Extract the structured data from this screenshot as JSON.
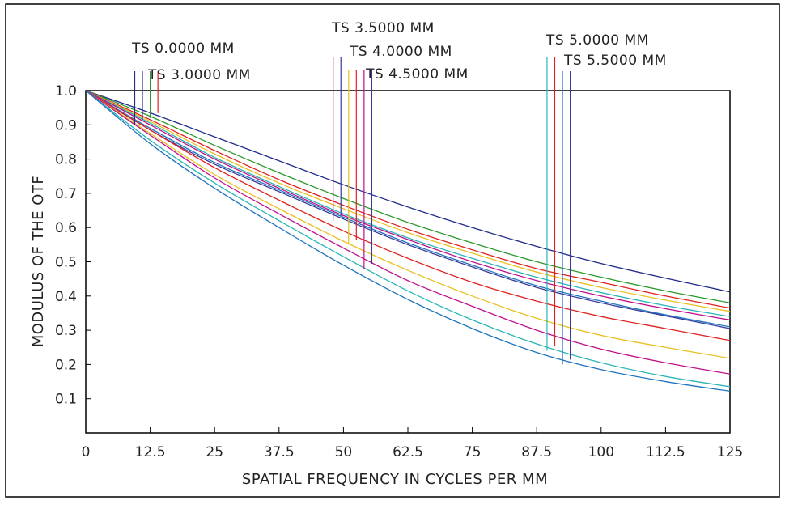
{
  "chart_data": {
    "type": "line",
    "title": "",
    "xlabel": "SPATIAL FREQUENCY IN CYCLES PER MM",
    "ylabel": "MODULUS OF THE OTF",
    "xlim": [
      0,
      125
    ],
    "ylim": [
      0,
      1.0
    ],
    "grid": false,
    "x_ticks": [
      "0",
      "12.5",
      "25",
      "37.5",
      "50",
      "62.5",
      "75",
      "87.5",
      "100",
      "112.5",
      "125"
    ],
    "y_ticks": [
      "0.1",
      "0.2",
      "0.3",
      "0.4",
      "0.5",
      "0.6",
      "0.7",
      "0.8",
      "0.9",
      "1.0"
    ],
    "field_labels": [
      {
        "text": "TS 0.0000 MM",
        "marker_x": [
          9.5,
          11.0
        ],
        "marker_y": 0.9
      },
      {
        "text": "TS 3.0000 MM",
        "marker_x": [
          12.5,
          14.0
        ],
        "marker_y": 0.92
      },
      {
        "text": "TS 3.5000 MM",
        "marker_x": [
          48.0,
          49.5
        ],
        "marker_y": 0.62
      },
      {
        "text": "TS 4.0000 MM",
        "marker_x": [
          51.0,
          52.5
        ],
        "marker_y": 0.55
      },
      {
        "text": "TS 4.5000 MM",
        "marker_x": [
          54.0,
          55.5
        ],
        "marker_y": 0.48
      },
      {
        "text": "TS 5.0000 MM",
        "marker_x": [
          89.5,
          91.0
        ],
        "marker_y": 0.24
      },
      {
        "text": "TS 5.5000 MM",
        "marker_x": [
          92.5,
          94.0
        ],
        "marker_y": 0.2
      }
    ],
    "series": [
      {
        "color": "#1f2a8a",
        "x": [
          0,
          12.5,
          25,
          37.5,
          50,
          62.5,
          75,
          87.5,
          100,
          112.5,
          125
        ],
        "y": [
          1.0,
          0.935,
          0.865,
          0.795,
          0.725,
          0.66,
          0.6,
          0.545,
          0.495,
          0.452,
          0.412
        ]
      },
      {
        "color": "#2a9a2a",
        "x": [
          0,
          12.5,
          25,
          37.5,
          50,
          62.5,
          75,
          87.5,
          100,
          112.5,
          125
        ],
        "y": [
          1.0,
          0.925,
          0.84,
          0.76,
          0.685,
          0.615,
          0.555,
          0.5,
          0.455,
          0.415,
          0.38
        ]
      },
      {
        "color": "#e02020",
        "x": [
          0,
          12.5,
          25,
          37.5,
          50,
          62.5,
          75,
          87.5,
          100,
          112.5,
          125
        ],
        "y": [
          1.0,
          0.915,
          0.825,
          0.74,
          0.665,
          0.595,
          0.535,
          0.48,
          0.44,
          0.4,
          0.365
        ]
      },
      {
        "color": "#e8c020",
        "x": [
          0,
          12.5,
          25,
          37.5,
          50,
          62.5,
          75,
          87.5,
          100,
          112.5,
          125
        ],
        "y": [
          1.0,
          0.91,
          0.815,
          0.73,
          0.655,
          0.585,
          0.525,
          0.47,
          0.425,
          0.388,
          0.355
        ]
      },
      {
        "color": "#2bb5b5",
        "x": [
          0,
          12.5,
          25,
          37.5,
          50,
          62.5,
          75,
          87.5,
          100,
          112.5,
          125
        ],
        "y": [
          1.0,
          0.905,
          0.805,
          0.72,
          0.64,
          0.57,
          0.51,
          0.455,
          0.41,
          0.372,
          0.34
        ]
      },
      {
        "color": "#c0108a",
        "x": [
          0,
          12.5,
          25,
          37.5,
          50,
          62.5,
          75,
          87.5,
          100,
          112.5,
          125
        ],
        "y": [
          1.0,
          0.9,
          0.8,
          0.715,
          0.635,
          0.565,
          0.5,
          0.445,
          0.4,
          0.363,
          0.33
        ]
      },
      {
        "color": "#1e73be",
        "x": [
          0,
          12.5,
          25,
          37.5,
          50,
          62.5,
          75,
          87.5,
          100,
          112.5,
          125
        ],
        "y": [
          1.0,
          0.89,
          0.79,
          0.71,
          0.63,
          0.555,
          0.49,
          0.43,
          0.385,
          0.345,
          0.31
        ]
      },
      {
        "color": "#3a3a9a",
        "x": [
          0,
          12.5,
          25,
          37.5,
          50,
          62.5,
          75,
          87.5,
          100,
          112.5,
          125
        ],
        "y": [
          1.0,
          0.885,
          0.785,
          0.705,
          0.625,
          0.55,
          0.485,
          0.425,
          0.38,
          0.342,
          0.305
        ]
      },
      {
        "color": "#e02020",
        "x": [
          0,
          12.5,
          25,
          37.5,
          50,
          62.5,
          75,
          87.5,
          100,
          112.5,
          125
        ],
        "y": [
          1.0,
          0.885,
          0.775,
          0.68,
          0.59,
          0.51,
          0.44,
          0.385,
          0.34,
          0.305,
          0.27
        ]
      },
      {
        "color": "#e8c020",
        "x": [
          0,
          12.5,
          25,
          37.5,
          50,
          62.5,
          75,
          87.5,
          100,
          112.5,
          125
        ],
        "y": [
          1.0,
          0.875,
          0.755,
          0.655,
          0.56,
          0.475,
          0.4,
          0.335,
          0.285,
          0.25,
          0.218
        ]
      },
      {
        "color": "#c0108a",
        "x": [
          0,
          12.5,
          25,
          37.5,
          50,
          62.5,
          75,
          87.5,
          100,
          112.5,
          125
        ],
        "y": [
          1.0,
          0.87,
          0.745,
          0.64,
          0.54,
          0.445,
          0.37,
          0.3,
          0.245,
          0.205,
          0.172
        ]
      },
      {
        "color": "#2bb5b5",
        "x": [
          0,
          12.5,
          25,
          37.5,
          50,
          62.5,
          75,
          87.5,
          100,
          112.5,
          125
        ],
        "y": [
          1.0,
          0.855,
          0.73,
          0.62,
          0.515,
          0.415,
          0.33,
          0.26,
          0.205,
          0.165,
          0.135
        ]
      },
      {
        "color": "#1e73be",
        "x": [
          0,
          12.5,
          25,
          37.5,
          50,
          62.5,
          75,
          87.5,
          100,
          112.5,
          125
        ],
        "y": [
          1.0,
          0.845,
          0.715,
          0.6,
          0.49,
          0.39,
          0.305,
          0.235,
          0.185,
          0.15,
          0.122
        ]
      }
    ]
  }
}
